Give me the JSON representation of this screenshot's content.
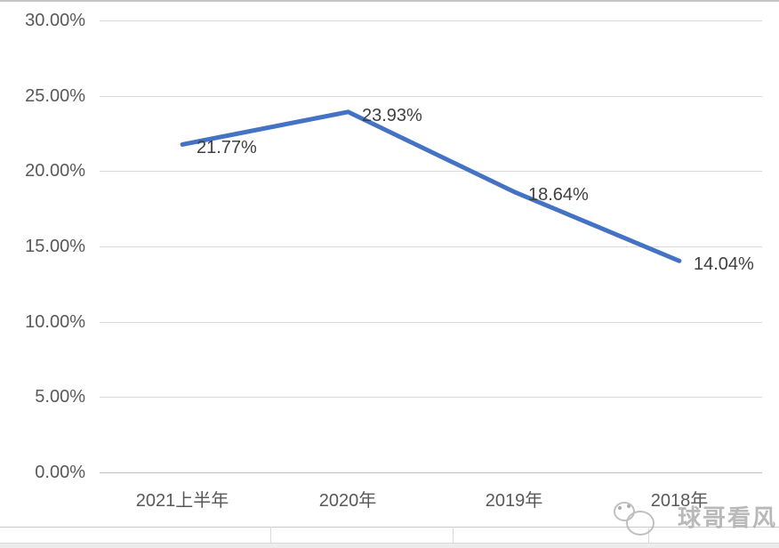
{
  "chart_data": {
    "type": "line",
    "title": "",
    "categories": [
      "2021上半年",
      "2020年",
      "2019年",
      "2018年"
    ],
    "values": [
      21.77,
      23.93,
      18.64,
      14.04
    ],
    "data_labels": [
      "21.77%",
      "23.93%",
      "18.64%",
      "14.04%"
    ],
    "y_ticks": [
      {
        "value": 30,
        "label": "30.00%"
      },
      {
        "value": 25,
        "label": "25.00%"
      },
      {
        "value": 20,
        "label": "20.00%"
      },
      {
        "value": 15,
        "label": "15.00%"
      },
      {
        "value": 10,
        "label": "10.00%"
      },
      {
        "value": 5,
        "label": "5.00%"
      },
      {
        "value": 0,
        "label": "0.00%"
      }
    ],
    "ylim": [
      0,
      30
    ],
    "xlabel": "",
    "ylabel": "",
    "grid": true,
    "legend_position": "none",
    "line_color": "#4472C4",
    "gridline_color": "#D9D9D9",
    "axis_line_color": "#BFBFBF",
    "axis_text_color": "#595959",
    "data_label_color": "#404040"
  },
  "watermark": {
    "text": "球哥看风",
    "face_icon": "cartoon-face-icon",
    "color": "#ADADAD"
  }
}
